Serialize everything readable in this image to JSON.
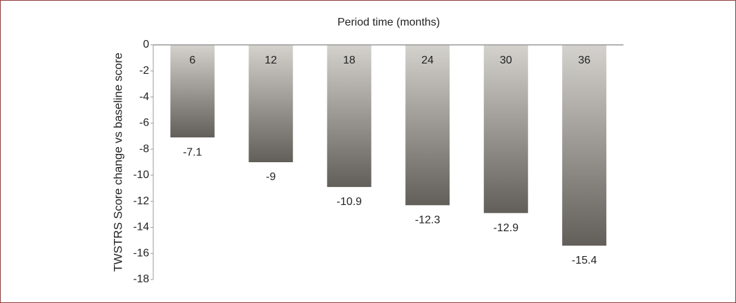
{
  "chart_data": {
    "type": "bar",
    "x_label": "Period time (months)",
    "y_label": "TWSTRS Score change vs baseline score",
    "categories": [
      "6",
      "12",
      "18",
      "24",
      "30",
      "36"
    ],
    "values": [
      -7.1,
      -9,
      -10.9,
      -12.3,
      -12.9,
      -15.4
    ],
    "color": "#625e59",
    "ylim": [
      -18,
      0
    ],
    "yticks": [
      0,
      -2,
      -4,
      -6,
      -8,
      -10,
      -12,
      -14,
      -16,
      -18
    ],
    "grid": false
  }
}
